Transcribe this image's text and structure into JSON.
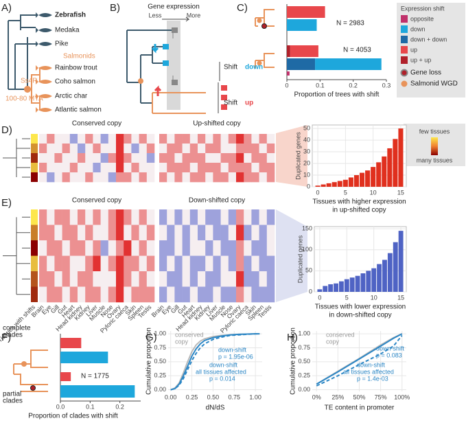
{
  "panel_labels": [
    "A)",
    "B)",
    "C)",
    "D)",
    "E)",
    "F)",
    "G)",
    "H)"
  ],
  "tree": {
    "species": [
      "Zebrafish",
      "Medaka",
      "Pike",
      "Rainbow trout",
      "Coho salmon",
      "Arctic char",
      "Atlantic salmon"
    ],
    "clade": "Salmonids",
    "event": "Ss4R",
    "age": "100-80 MYA"
  },
  "schematic": {
    "title": "Gene expression",
    "less": "Less",
    "more": "More",
    "shift_word": "Shift",
    "down": "down",
    "up": "up"
  },
  "tissue_key": [
    "few tissues",
    "many tissues"
  ],
  "chart_data": [
    {
      "type": "bar",
      "orientation": "horizontal",
      "xlabel": "Proportion of trees with shift",
      "xlim": [
        0,
        0.3
      ],
      "xticks": [
        0,
        0.1,
        0.2,
        0.3
      ],
      "annotations": [
        "N = 2983",
        "N = 4053"
      ],
      "legend_title": "Expression shift",
      "series": [
        {
          "name": "opposite",
          "color": "#c0306a",
          "values": [
            null,
            null,
            null,
            null,
            0.008
          ]
        },
        {
          "name": "down",
          "color": "#1ea7dc",
          "values": [
            null,
            0.09,
            null,
            0.2,
            null
          ]
        },
        {
          "name": "down + down",
          "color": "#1f6aa5",
          "values": [
            null,
            null,
            null,
            0.085,
            null
          ]
        },
        {
          "name": "up",
          "color": "#e8474b",
          "values": [
            0.115,
            null,
            0.085,
            null,
            null
          ]
        },
        {
          "name": "up + up",
          "color": "#b0202a",
          "values": [
            null,
            null,
            0.01,
            null,
            null
          ]
        }
      ],
      "legend_extra": [
        "Gene loss",
        "Salmonid WGD"
      ]
    },
    {
      "type": "histogram",
      "color": "#e0301e",
      "bins": [
        -0.5,
        0.5,
        1.5,
        2.5,
        3.5,
        4.5,
        5.5,
        6.5,
        7.5,
        8.5,
        9.5,
        10.5,
        11.5,
        12.5,
        13.5,
        14.5,
        15.5
      ],
      "values": [
        1,
        2,
        3,
        4,
        5,
        6,
        8,
        10,
        12,
        14,
        17,
        21,
        26,
        33,
        41,
        50
      ],
      "xlim": [
        -1,
        16
      ],
      "xticks": [
        0,
        5,
        10,
        15
      ],
      "ylim": [
        0,
        53
      ],
      "yticks": [
        0,
        10,
        20,
        30,
        40,
        50
      ],
      "xlabel": [
        "Tissues with higher expression",
        "in up-shifted copy"
      ],
      "ylabel": "Duplicated genes",
      "grid": true
    },
    {
      "type": "histogram",
      "color": "#4f63c4",
      "bins": [
        -0.5,
        0.5,
        1.5,
        2.5,
        3.5,
        4.5,
        5.5,
        6.5,
        7.5,
        8.5,
        9.5,
        10.5,
        11.5,
        12.5,
        13.5,
        14.5,
        15.5
      ],
      "values": [
        6,
        14,
        18,
        20,
        25,
        30,
        34,
        38,
        44,
        50,
        56,
        66,
        76,
        92,
        118,
        145
      ],
      "xlim": [
        -1,
        16
      ],
      "xticks": [
        0,
        5,
        10,
        15
      ],
      "ylim": [
        0,
        155
      ],
      "yticks": [
        0,
        50,
        100,
        150
      ],
      "xlabel": [
        "Tissues with lower expression",
        "in down-shifted copy"
      ],
      "ylabel": "Duplicated genes",
      "grid": true
    },
    {
      "type": "bar",
      "orientation": "horizontal",
      "xlabel": "Proportion of clades with shift",
      "groups": [
        [
          "complete",
          "clades"
        ],
        [
          "partial",
          "clades"
        ]
      ],
      "xlim": [
        0,
        0.27
      ],
      "xticks": [
        {
          "value": 0,
          "label": "0.0"
        },
        {
          "value": 0.1,
          "label": "0.1"
        },
        {
          "value": 0.2,
          "label": "0.2"
        }
      ],
      "annotations": [
        "N = 1775"
      ],
      "series": [
        {
          "color": "#e8474b",
          "values": [
            0.07,
            0.035
          ]
        },
        {
          "color": "#1ea7dc",
          "values": [
            0.16,
            0.25
          ]
        }
      ]
    },
    {
      "type": "line",
      "xlabel": "dN/dS",
      "ylabel": "Cumulative proportion",
      "grid": true,
      "x": [
        0,
        0.05,
        0.1,
        0.15,
        0.2,
        0.25,
        0.3,
        0.35,
        0.4,
        0.5,
        0.6,
        0.7,
        0.8,
        0.9,
        1.0,
        1.05
      ],
      "xlim": [
        -0.03,
        1.08
      ],
      "ylim": [
        -0.03,
        1.05
      ],
      "xticks": [
        {
          "value": 0,
          "label": "0.00"
        },
        {
          "value": 0.25,
          "label": "0.25"
        },
        {
          "value": 0.5,
          "label": "0.50"
        },
        {
          "value": 0.75,
          "label": "0.75"
        },
        {
          "value": 1,
          "label": "1.00"
        }
      ],
      "yticks": [
        {
          "value": 0,
          "label": "0.00"
        },
        {
          "value": 0.25,
          "label": "0.25"
        },
        {
          "value": 0.5,
          "label": "0.50"
        },
        {
          "value": 0.75,
          "label": "0.75"
        },
        {
          "value": 1,
          "label": "1.00"
        }
      ],
      "series": [
        {
          "color": "#b8b8b8",
          "dash": false,
          "values": [
            0,
            0.03,
            0.12,
            0.3,
            0.5,
            0.68,
            0.8,
            0.87,
            0.91,
            0.95,
            0.97,
            0.98,
            0.99,
            0.995,
            1,
            1
          ]
        },
        {
          "color": "#2b86c5",
          "dash": false,
          "values": [
            0,
            0.02,
            0.1,
            0.25,
            0.42,
            0.6,
            0.73,
            0.82,
            0.88,
            0.93,
            0.96,
            0.98,
            0.99,
            0.995,
            1,
            1
          ]
        },
        {
          "color": "#2b86c5",
          "dash": true,
          "values": [
            0,
            0.02,
            0.08,
            0.2,
            0.36,
            0.52,
            0.65,
            0.75,
            0.82,
            0.9,
            0.94,
            0.97,
            0.98,
            0.99,
            1,
            1
          ]
        }
      ],
      "annotations": [
        {
          "text": "conserved",
          "color": "#999999"
        },
        {
          "text": "copy",
          "color": "#999999"
        },
        {
          "text": "down-shift",
          "color": "#2b86c5"
        },
        {
          "text": "p = 1.95e-06",
          "color": "#2b86c5"
        },
        {
          "text": "down-shift",
          "color": "#2b86c5"
        },
        {
          "text": "all tissues affected",
          "color": "#2b86c5"
        },
        {
          "text": "p = 0.014",
          "color": "#2b86c5"
        }
      ]
    },
    {
      "type": "line",
      "xlabel": "TE content in promoter",
      "ylabel": "Cumulative proportion",
      "grid": true,
      "x": [
        0,
        0.25,
        0.5,
        0.75,
        0.9,
        1.0
      ],
      "xlim": [
        -0.05,
        1.05
      ],
      "ylim": [
        -0.03,
        1.05
      ],
      "xticks": [
        {
          "value": 0,
          "label": "0%"
        },
        {
          "value": 0.25,
          "label": "25%"
        },
        {
          "value": 0.5,
          "label": "50%"
        },
        {
          "value": 0.75,
          "label": "75%"
        },
        {
          "value": 1,
          "label": "100%"
        }
      ],
      "yticks": [
        {
          "value": 0,
          "label": "0.00"
        },
        {
          "value": 0.25,
          "label": "0.25"
        },
        {
          "value": 0.5,
          "label": "0.50"
        },
        {
          "value": 0.75,
          "label": "0.75"
        },
        {
          "value": 1,
          "label": "1.00"
        }
      ],
      "series": [
        {
          "color": "#b8b8b8",
          "dash": false,
          "values": [
            0.1,
            0.33,
            0.56,
            0.8,
            0.93,
            1
          ]
        },
        {
          "color": "#2b86c5",
          "dash": false,
          "values": [
            0.1,
            0.32,
            0.55,
            0.78,
            0.92,
            1
          ]
        },
        {
          "color": "#2b86c5",
          "dash": true,
          "values": [
            0.07,
            0.25,
            0.45,
            0.64,
            0.78,
            0.97
          ]
        }
      ],
      "annotations": [
        {
          "text": "conserved",
          "color": "#999999"
        },
        {
          "text": "copy",
          "color": "#999999"
        },
        {
          "text": "down-shift",
          "color": "#2b86c5"
        },
        {
          "text": "p = 0.083",
          "color": "#2b86c5"
        },
        {
          "text": "down-shift",
          "color": "#2b86c5"
        },
        {
          "text": "all tissues affected",
          "color": "#2b86c5"
        },
        {
          "text": "p = 1.4e-03",
          "color": "#2b86c5"
        }
      ]
    },
    {
      "type": "heatmap",
      "titles": [
        "Conserved copy",
        "Up-shifted copy"
      ],
      "sides": [
        3,
        7,
        12,
        5,
        14
      ],
      "matrices": [
        [
          [
            0,
            1,
            0,
            0,
            -1,
            0,
            1,
            0,
            -1,
            0,
            2,
            1,
            0,
            1,
            0
          ],
          [
            1,
            0,
            0,
            1,
            0,
            -1,
            0,
            1,
            0,
            0,
            2,
            0,
            -1,
            0,
            1
          ],
          [
            0,
            0,
            1,
            0,
            0,
            1,
            0,
            0,
            -1,
            1,
            2,
            1,
            0,
            0,
            -1
          ],
          [
            1,
            0,
            0,
            0,
            1,
            0,
            0,
            -1,
            0,
            0,
            2,
            0,
            1,
            0,
            0
          ],
          [
            0,
            -1,
            0,
            1,
            0,
            0,
            1,
            0,
            0,
            -1,
            1,
            1,
            0,
            1,
            0
          ]
        ],
        [
          [
            1,
            0,
            1,
            1,
            0,
            1,
            0,
            1,
            0,
            1,
            2,
            1,
            0,
            1,
            0
          ],
          [
            0,
            1,
            1,
            0,
            1,
            0,
            1,
            1,
            0,
            0,
            1,
            1,
            1,
            0,
            1
          ],
          [
            1,
            1,
            0,
            1,
            1,
            1,
            0,
            0,
            1,
            1,
            2,
            0,
            1,
            1,
            0
          ],
          [
            0,
            1,
            1,
            1,
            0,
            1,
            1,
            1,
            0,
            1,
            1,
            1,
            0,
            1,
            1
          ],
          [
            1,
            0,
            1,
            0,
            1,
            1,
            0,
            1,
            1,
            0,
            2,
            1,
            1,
            0,
            1
          ]
        ]
      ]
    },
    {
      "type": "heatmap",
      "titles": [
        "Conserved copy",
        "Down-shifted copy"
      ],
      "sides": [
        4,
        9,
        15,
        6,
        11,
        13
      ],
      "side_label": "Tissues with shifts",
      "tissues": [
        "Brain",
        "Eye",
        "Gill",
        "Gut",
        "Heart",
        "Head kidney",
        "Kidney",
        "Liver",
        "Muscle",
        "Nose",
        "Ovary",
        "Pyloric caeca",
        "Skin",
        "Spleen",
        "Testis"
      ],
      "matrices": [
        [
          [
            1,
            0,
            1,
            1,
            0,
            1,
            0,
            1,
            0,
            1,
            2,
            1,
            0,
            1,
            0
          ],
          [
            1,
            1,
            0,
            1,
            1,
            0,
            1,
            0,
            0,
            1,
            2,
            0,
            1,
            0,
            1
          ],
          [
            0,
            1,
            1,
            0,
            1,
            1,
            0,
            1,
            -1,
            0,
            1,
            2,
            0,
            1,
            0
          ],
          [
            1,
            0,
            1,
            1,
            0,
            0,
            1,
            2,
            0,
            1,
            2,
            1,
            1,
            0,
            1
          ],
          [
            1,
            1,
            0,
            1,
            0,
            1,
            1,
            0,
            0,
            0,
            2,
            1,
            0,
            1,
            0
          ],
          [
            0,
            1,
            1,
            0,
            1,
            0,
            1,
            1,
            0,
            1,
            2,
            0,
            1,
            1,
            1
          ]
        ],
        [
          [
            -1,
            0,
            -1,
            0,
            -1,
            0,
            -1,
            -1,
            0,
            -1,
            1,
            0,
            -1,
            0,
            -1
          ],
          [
            0,
            -1,
            0,
            -1,
            0,
            -1,
            0,
            -1,
            -1,
            0,
            2,
            -1,
            0,
            -1,
            0
          ],
          [
            -1,
            -1,
            0,
            -1,
            0,
            0,
            -1,
            0,
            -1,
            -1,
            1,
            0,
            -1,
            -1,
            0
          ],
          [
            -1,
            0,
            -1,
            0,
            -1,
            -1,
            0,
            -1,
            0,
            -1,
            1,
            -1,
            0,
            -1,
            -1
          ],
          [
            0,
            -1,
            -1,
            0,
            -1,
            0,
            -1,
            -1,
            0,
            0,
            2,
            -1,
            -1,
            0,
            -1
          ],
          [
            -1,
            0,
            -1,
            -1,
            0,
            -1,
            -1,
            0,
            -1,
            -1,
            1,
            0,
            -1,
            -1,
            -1
          ]
        ]
      ]
    }
  ]
}
